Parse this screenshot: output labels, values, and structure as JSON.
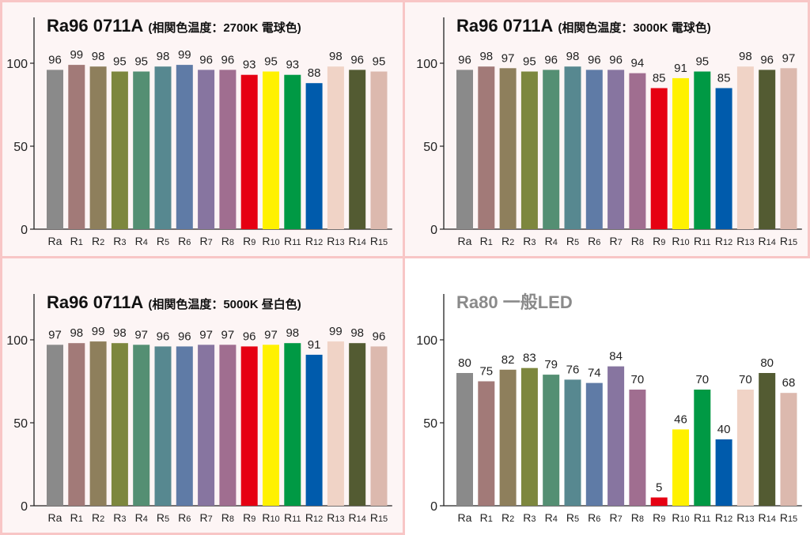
{
  "chart_data": [
    {
      "type": "bar",
      "title": "Ra96 0711A",
      "subtitle": "(相関色温度：2700K 電球色)",
      "categories": [
        "Ra",
        "R1",
        "R2",
        "R3",
        "R4",
        "R5",
        "R6",
        "R7",
        "R8",
        "R9",
        "R10",
        "R11",
        "R12",
        "R13",
        "R14",
        "R15"
      ],
      "values": [
        96,
        99,
        98,
        95,
        95,
        98,
        99,
        96,
        96,
        93,
        95,
        93,
        88,
        98,
        96,
        95
      ],
      "yticks": [
        0,
        50,
        100
      ],
      "ylim": [
        0,
        100
      ]
    },
    {
      "type": "bar",
      "title": "Ra96 0711A",
      "subtitle": "(相関色温度：3000K 電球色)",
      "categories": [
        "Ra",
        "R1",
        "R2",
        "R3",
        "R4",
        "R5",
        "R6",
        "R7",
        "R8",
        "R9",
        "R10",
        "R11",
        "R12",
        "R13",
        "R14",
        "R15"
      ],
      "values": [
        96,
        98,
        97,
        95,
        96,
        98,
        96,
        96,
        94,
        85,
        91,
        95,
        85,
        98,
        96,
        97
      ],
      "yticks": [
        0,
        50,
        100
      ],
      "ylim": [
        0,
        100
      ]
    },
    {
      "type": "bar",
      "title": "Ra96 0711A",
      "subtitle": "(相関色温度：5000K 昼白色)",
      "categories": [
        "Ra",
        "R1",
        "R2",
        "R3",
        "R4",
        "R5",
        "R6",
        "R7",
        "R8",
        "R9",
        "R10",
        "R11",
        "R12",
        "R13",
        "R14",
        "R15"
      ],
      "values": [
        97,
        98,
        99,
        98,
        97,
        96,
        96,
        97,
        97,
        96,
        97,
        98,
        91,
        99,
        98,
        96
      ],
      "yticks": [
        0,
        50,
        100
      ],
      "ylim": [
        0,
        100
      ]
    },
    {
      "type": "bar",
      "title": "Ra80 一般LED",
      "subtitle": "",
      "categories": [
        "Ra",
        "R1",
        "R2",
        "R3",
        "R4",
        "R5",
        "R6",
        "R7",
        "R8",
        "R9",
        "R10",
        "R11",
        "R12",
        "R13",
        "R14",
        "R15"
      ],
      "values": [
        80,
        75,
        82,
        83,
        79,
        76,
        74,
        84,
        70,
        5,
        46,
        70,
        40,
        70,
        80,
        68
      ],
      "yticks": [
        0,
        50,
        100
      ],
      "ylim": [
        0,
        100
      ]
    }
  ],
  "bar_colors": [
    "#8a8a8a",
    "#a27a78",
    "#8e7f5c",
    "#7d873e",
    "#548f73",
    "#578890",
    "#5f7ba6",
    "#8775a0",
    "#a06e90",
    "#e60012",
    "#fff100",
    "#009944",
    "#005bac",
    "#f0d3c6",
    "#535b32",
    "#dcb9ae"
  ],
  "colors": {
    "title": "#111111",
    "title_muted": "#8a8a8a",
    "panel_border": "#f8c6c6",
    "panel_bg": "#fdf5f5"
  }
}
